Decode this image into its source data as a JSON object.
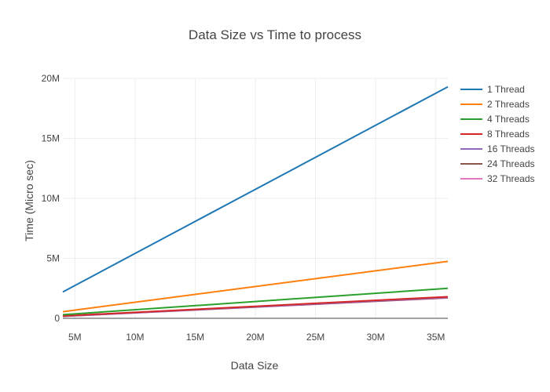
{
  "chart_data": {
    "type": "line",
    "title": "Data Size vs Time to process",
    "xlabel": "Data Size",
    "ylabel": "Time (Micro sec)",
    "xlim": [
      4000000,
      36000000
    ],
    "ylim": [
      0,
      20000000
    ],
    "x_ticks": [
      {
        "value": 5000000,
        "label": "5M"
      },
      {
        "value": 10000000,
        "label": "10M"
      },
      {
        "value": 15000000,
        "label": "15M"
      },
      {
        "value": 20000000,
        "label": "20M"
      },
      {
        "value": 25000000,
        "label": "25M"
      },
      {
        "value": 30000000,
        "label": "30M"
      },
      {
        "value": 35000000,
        "label": "35M"
      }
    ],
    "y_ticks": [
      {
        "value": 0,
        "label": "0"
      },
      {
        "value": 5000000,
        "label": "5M"
      },
      {
        "value": 10000000,
        "label": "10M"
      },
      {
        "value": 15000000,
        "label": "15M"
      },
      {
        "value": 20000000,
        "label": "20M"
      }
    ],
    "grid": true,
    "legend_position": "top-right",
    "x": [
      4000000,
      36000000
    ],
    "series": [
      {
        "name": "1 Thread",
        "color": "#1f77b4",
        "values": [
          2200000,
          19300000
        ]
      },
      {
        "name": "2 Threads",
        "color": "#ff7f0e",
        "values": [
          550000,
          4750000
        ]
      },
      {
        "name": "4 Threads",
        "color": "#2ca02c",
        "values": [
          300000,
          2500000
        ]
      },
      {
        "name": "8 Threads",
        "color": "#d62728",
        "values": [
          200000,
          1800000
        ]
      },
      {
        "name": "16 Threads",
        "color": "#9467bd",
        "values": [
          180000,
          1750000
        ]
      },
      {
        "name": "24 Threads",
        "color": "#8c564b",
        "values": [
          170000,
          1720000
        ]
      },
      {
        "name": "32 Threads",
        "color": "#e377c2",
        "values": [
          160000,
          1700000
        ]
      }
    ]
  }
}
